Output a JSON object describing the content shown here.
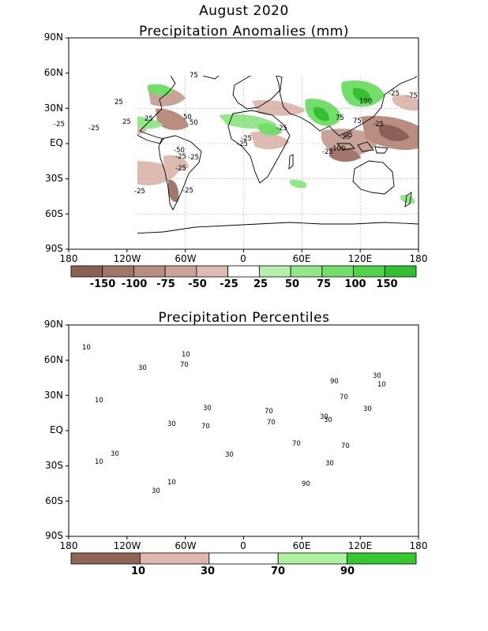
{
  "header": {
    "month": "August 2020"
  },
  "panels": [
    {
      "title": "Precipitation Anomalies (mm)",
      "lat_labels": [
        "90N",
        "60N",
        "30N",
        "EQ",
        "30S",
        "60S",
        "90S"
      ],
      "lon_labels": [
        "180",
        "120W",
        "60W",
        "0",
        "60E",
        "120E",
        "180"
      ],
      "colorbar": {
        "labels": [
          "-150",
          "-100",
          "-75",
          "-50",
          "-25",
          "25",
          "50",
          "75",
          "100",
          "150"
        ],
        "colors": [
          "#8b6156",
          "#a07769",
          "#b98d80",
          "#c9a397",
          "#ddbbb0",
          "#ffffff",
          "#b5f1ad",
          "#93e68a",
          "#73de6b",
          "#50d24a",
          "#33bf2f"
        ]
      },
      "contour_labels": [
        "-25",
        "-25",
        "-25",
        "-25",
        "-50",
        "-25",
        "-25",
        "-25",
        "-25",
        "-25",
        "-100",
        "-25",
        "-25",
        "25",
        "25",
        "25",
        "50",
        "50",
        "75",
        "100",
        "75",
        "75",
        "-75",
        "-25",
        "-25",
        "-25",
        "-25"
      ]
    },
    {
      "title": "Precipitation Percentiles",
      "lat_labels": [
        "90N",
        "60N",
        "30N",
        "EQ",
        "30S",
        "60S",
        "90S"
      ],
      "lon_labels": [
        "180",
        "120W",
        "60W",
        "0",
        "60E",
        "120E",
        "180"
      ],
      "colorbar": {
        "labels": [
          "10",
          "30",
          "70",
          "90"
        ],
        "colors": [
          "#8f6557",
          "#deb8ad",
          "#ffffff",
          "#adf2a0",
          "#33c92f"
        ]
      },
      "contour_labels": [
        "10",
        "10",
        "10",
        "30",
        "30",
        "10",
        "30",
        "30",
        "70",
        "30",
        "30",
        "70",
        "70",
        "90",
        "70",
        "70",
        "70",
        "30",
        "30",
        "10",
        "90",
        "30",
        "30",
        "10",
        "70",
        "30"
      ]
    }
  ]
}
